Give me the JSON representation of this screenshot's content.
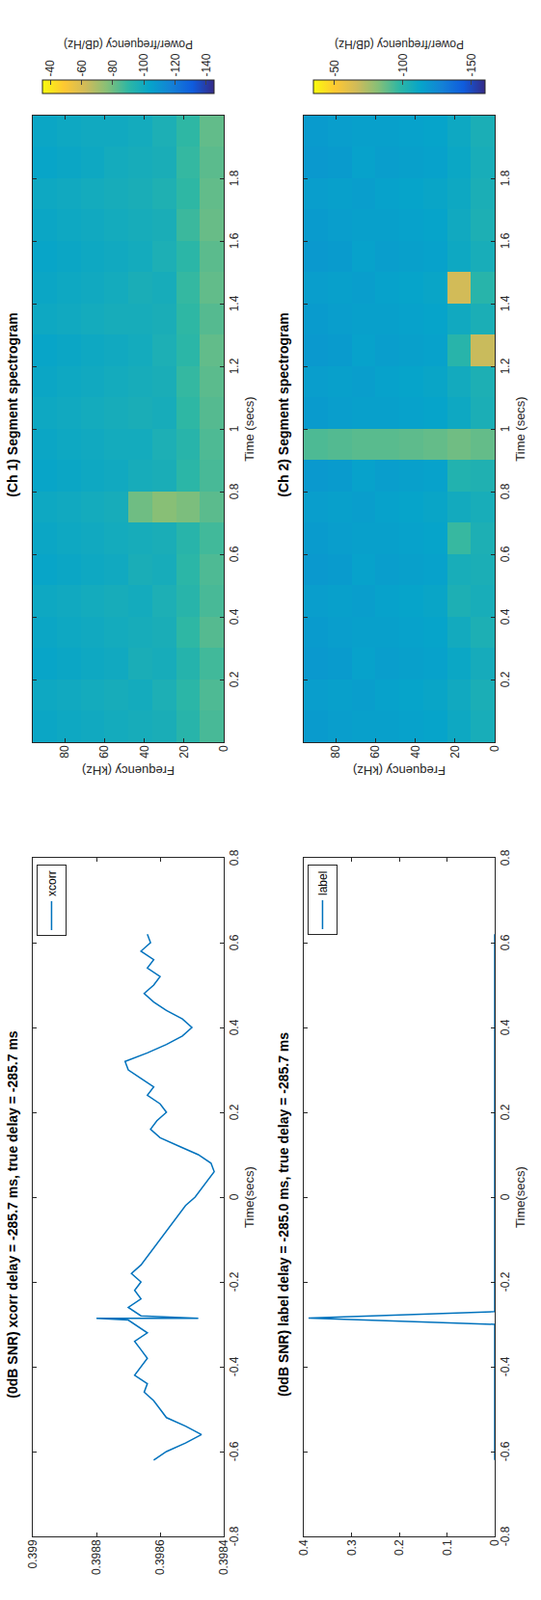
{
  "chart_data": [
    {
      "type": "line",
      "title": "(0dB SNR) xcorr delay = -285.7 ms, true delay = -285.7 ms",
      "x_label": "Time(secs)",
      "xlim": [
        -0.8,
        0.8
      ],
      "xticks": [
        -0.8,
        -0.6,
        -0.4,
        -0.2,
        0,
        0.2,
        0.4,
        0.6,
        0.8
      ],
      "ylim": [
        0.3984,
        0.399
      ],
      "yticks": [
        0.3984,
        0.3986,
        0.3988,
        0.399
      ],
      "legend": "upper right",
      "x": [
        -0.62,
        -0.6,
        -0.58,
        -0.56,
        -0.54,
        -0.52,
        -0.5,
        -0.48,
        -0.46,
        -0.44,
        -0.42,
        -0.4,
        -0.38,
        -0.36,
        -0.34,
        -0.32,
        -0.3,
        -0.29,
        -0.2857,
        -0.2857,
        -0.28,
        -0.26,
        -0.24,
        -0.22,
        -0.2,
        -0.18,
        -0.16,
        -0.14,
        -0.12,
        -0.1,
        -0.08,
        -0.06,
        -0.04,
        -0.02,
        0,
        0.02,
        0.04,
        0.06,
        0.08,
        0.1,
        0.12,
        0.14,
        0.16,
        0.18,
        0.2,
        0.22,
        0.24,
        0.26,
        0.28,
        0.3,
        0.32,
        0.34,
        0.36,
        0.38,
        0.4,
        0.42,
        0.44,
        0.46,
        0.48,
        0.5,
        0.52,
        0.54,
        0.56,
        0.58,
        0.6,
        0.62
      ],
      "series": [
        {
          "name": "xcorr",
          "color": "#0072bd",
          "values": [
            0.39862,
            0.39858,
            0.39852,
            0.39847,
            0.39852,
            0.39858,
            0.3986,
            0.39862,
            0.39865,
            0.39864,
            0.39868,
            0.39866,
            0.39864,
            0.39866,
            0.39868,
            0.39864,
            0.39868,
            0.3987,
            0.3988,
            0.39848,
            0.39866,
            0.3987,
            0.39866,
            0.39868,
            0.39866,
            0.39869,
            0.39866,
            0.39864,
            0.39862,
            0.3986,
            0.39858,
            0.39856,
            0.39854,
            0.39852,
            0.39849,
            0.39847,
            0.39845,
            0.39843,
            0.39844,
            0.39848,
            0.39854,
            0.3986,
            0.39863,
            0.39861,
            0.39858,
            0.3986,
            0.39864,
            0.39862,
            0.39866,
            0.3987,
            0.39871,
            0.39864,
            0.39858,
            0.39853,
            0.3985,
            0.39853,
            0.39858,
            0.39862,
            0.39865,
            0.39862,
            0.3986,
            0.39864,
            0.39862,
            0.39866,
            0.39863,
            0.39864
          ]
        }
      ]
    },
    {
      "type": "line",
      "title": "(0dB SNR) label delay = -285.0 ms, true delay = -285.7 ms",
      "x_label": "Time(secs)",
      "xlim": [
        -0.8,
        0.8
      ],
      "xticks": [
        -0.8,
        -0.6,
        -0.4,
        -0.2,
        0,
        0.2,
        0.4,
        0.6,
        0.8
      ],
      "ylim": [
        0,
        0.4
      ],
      "yticks": [
        0,
        0.1,
        0.2,
        0.3,
        0.4
      ],
      "legend": "upper right",
      "x": [
        -0.62,
        -0.3,
        -0.285,
        -0.27,
        0.62
      ],
      "series": [
        {
          "name": "label",
          "color": "#0072bd",
          "values": [
            0,
            0,
            0.39,
            0,
            0
          ]
        }
      ]
    },
    {
      "type": "heatmap",
      "title": "(Ch 1) Segment spectrogram",
      "x_label": "Time (secs)",
      "y_label": "Frequency (kHz)",
      "colorbar_label": "Power/frequency (dB/Hz)",
      "xlim": [
        0,
        2
      ],
      "xticks": [
        0.2,
        0.4,
        0.6,
        0.8,
        1,
        1.2,
        1.4,
        1.6,
        1.8
      ],
      "ylim": [
        0,
        96
      ],
      "yticks": [
        0,
        20,
        40,
        60,
        80
      ],
      "zlim": [
        -145,
        -35
      ],
      "zticks": [
        -140,
        -120,
        -100,
        -80,
        -60,
        -40
      ],
      "x": [
        0.05,
        0.15,
        0.25,
        0.35,
        0.45,
        0.55,
        0.65,
        0.75,
        0.85,
        0.95,
        1.05,
        1.15,
        1.25,
        1.35,
        1.45,
        1.55,
        1.65,
        1.75,
        1.85,
        1.95
      ],
      "y": [
        6,
        18,
        30,
        42,
        54,
        66,
        78,
        90
      ],
      "z": [
        [
          -86,
          -85,
          -87,
          -84,
          -86,
          -85,
          -87,
          -83,
          -86,
          -85,
          -84,
          -83,
          -82,
          -84,
          -82,
          -83,
          -81,
          -82,
          -83,
          -82
        ],
        [
          -92,
          -91,
          -93,
          -90,
          -92,
          -91,
          -92,
          -78,
          -91,
          -92,
          -90,
          -89,
          -91,
          -90,
          -89,
          -91,
          -88,
          -90,
          -89,
          -90
        ],
        [
          -97,
          -96,
          -98,
          -97,
          -96,
          -98,
          -97,
          -76,
          -97,
          -96,
          -98,
          -97,
          -96,
          -97,
          -98,
          -96,
          -97,
          -95,
          -97,
          -96
        ],
        [
          -98,
          -99,
          -97,
          -98,
          -99,
          -97,
          -98,
          -80,
          -98,
          -99,
          -97,
          -98,
          -99,
          -98,
          -97,
          -99,
          -98,
          -97,
          -98,
          -99
        ],
        [
          -99,
          -98,
          -100,
          -99,
          -98,
          -100,
          -99,
          -98,
          -100,
          -99,
          -98,
          -99,
          -100,
          -98,
          -99,
          -100,
          -99,
          -98,
          -99,
          -100
        ],
        [
          -100,
          -99,
          -101,
          -100,
          -99,
          -101,
          -100,
          -99,
          -101,
          -100,
          -99,
          -100,
          -101,
          -99,
          -100,
          -101,
          -100,
          -99,
          -101,
          -100
        ],
        [
          -101,
          -100,
          -102,
          -101,
          -100,
          -102,
          -101,
          -100,
          -102,
          -101,
          -100,
          -101,
          -102,
          -100,
          -101,
          -102,
          -101,
          -100,
          -102,
          -101
        ],
        [
          -102,
          -101,
          -103,
          -102,
          -101,
          -103,
          -102,
          -101,
          -103,
          -102,
          -101,
          -102,
          -103,
          -101,
          -102,
          -103,
          -102,
          -101,
          -103,
          -102
        ]
      ]
    },
    {
      "type": "heatmap",
      "title": "(Ch 2) Segment spectrogram",
      "x_label": "Time (secs)",
      "y_label": "Frequency (kHz)",
      "colorbar_label": "Power/frequency (dB/Hz)",
      "xlim": [
        0,
        2
      ],
      "xticks": [
        0.2,
        0.4,
        0.6,
        0.8,
        1,
        1.2,
        1.4,
        1.6,
        1.8
      ],
      "ylim": [
        0,
        96
      ],
      "yticks": [
        0,
        20,
        40,
        60,
        80
      ],
      "zlim": [
        -160,
        -35
      ],
      "zticks": [
        -150,
        -100,
        -50
      ],
      "x": [
        0.05,
        0.15,
        0.25,
        0.35,
        0.45,
        0.55,
        0.65,
        0.75,
        0.85,
        0.95,
        1.05,
        1.15,
        1.25,
        1.35,
        1.45,
        1.55,
        1.65,
        1.75,
        1.85,
        1.95
      ],
      "y": [
        6,
        18,
        30,
        42,
        54,
        66,
        78,
        90
      ],
      "z": [
        [
          -106,
          -105,
          -107,
          -104,
          -106,
          -105,
          -104,
          -106,
          -103,
          -88,
          -105,
          -104,
          -68,
          -105,
          -100,
          -106,
          -104,
          -105,
          -106,
          -105
        ],
        [
          -110,
          -109,
          -111,
          -108,
          -104,
          -106,
          -96,
          -108,
          -102,
          -86,
          -110,
          -108,
          -100,
          -109,
          -66,
          -110,
          -109,
          -110,
          -111,
          -110
        ],
        [
          -113,
          -112,
          -114,
          -113,
          -112,
          -114,
          -113,
          -112,
          -114,
          -88,
          -113,
          -112,
          -114,
          -113,
          -112,
          -114,
          -113,
          -112,
          -114,
          -113
        ],
        [
          -114,
          -113,
          -115,
          -114,
          -113,
          -115,
          -114,
          -113,
          -115,
          -89,
          -114,
          -113,
          -115,
          -114,
          -113,
          -115,
          -114,
          -113,
          -115,
          -114
        ],
        [
          -115,
          -114,
          -116,
          -115,
          -114,
          -116,
          -115,
          -114,
          -116,
          -90,
          -115,
          -114,
          -116,
          -115,
          -114,
          -116,
          -115,
          -114,
          -116,
          -115
        ],
        [
          -115,
          -116,
          -114,
          -115,
          -116,
          -114,
          -115,
          -116,
          -114,
          -90,
          -115,
          -116,
          -114,
          -115,
          -116,
          -114,
          -115,
          -116,
          -114,
          -115
        ],
        [
          -116,
          -115,
          -117,
          -116,
          -115,
          -117,
          -116,
          -115,
          -117,
          -91,
          -116,
          -115,
          -117,
          -116,
          -115,
          -117,
          -116,
          -115,
          -117,
          -116
        ],
        [
          -117,
          -116,
          -118,
          -117,
          -116,
          -118,
          -117,
          -116,
          -118,
          -92,
          -117,
          -116,
          -118,
          -117,
          -116,
          -118,
          -117,
          -116,
          -118,
          -117
        ]
      ]
    }
  ]
}
